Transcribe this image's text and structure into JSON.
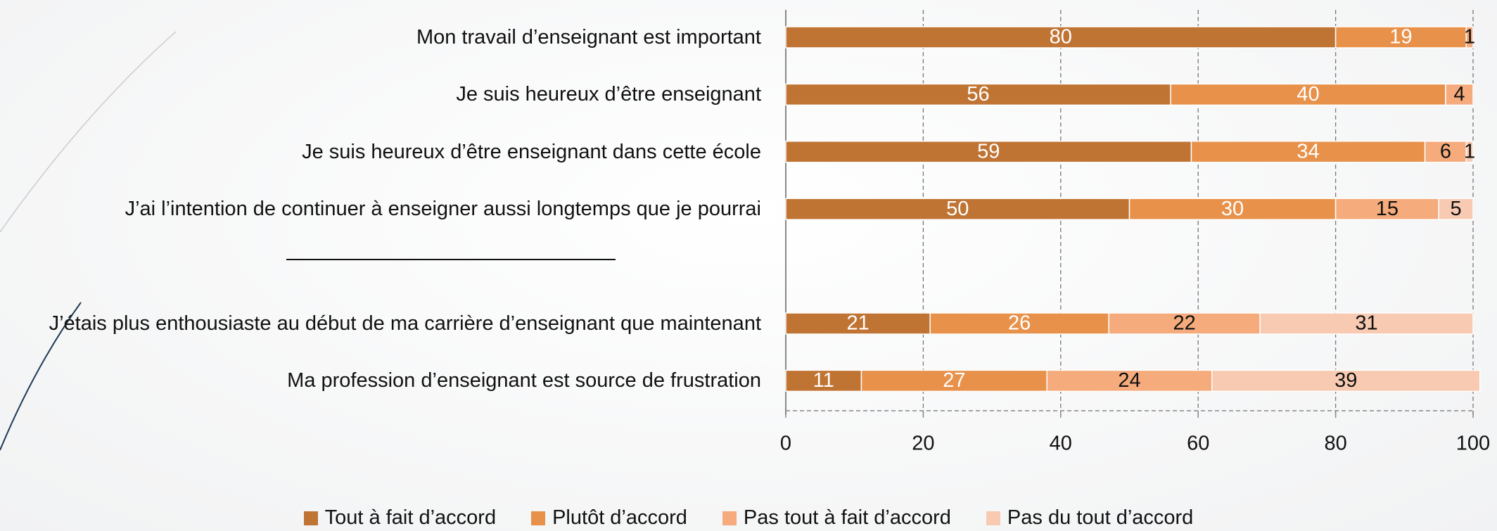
{
  "chart_data": {
    "type": "stacked_barh",
    "categories": [
      "Mon travail d’enseignant est important",
      "Je suis heureux d’être enseignant",
      "Je suis heureux d’être enseignant dans cette école",
      "J’ai l’intention de continuer à enseigner aussi longtemps que je pourrai",
      null,
      "J’étais plus enthousiaste au début de ma carrière d’enseignant que maintenant",
      "Ma profession d’enseignant est source de frustration"
    ],
    "series": [
      {
        "name": "Tout à fait d’accord",
        "color": "#c07434",
        "values": [
          80,
          56,
          59,
          50,
          null,
          21,
          11
        ]
      },
      {
        "name": "Plutôt d’accord",
        "color": "#e8914a",
        "values": [
          19,
          40,
          34,
          30,
          null,
          26,
          27
        ]
      },
      {
        "name": "Pas tout à fait d’accord",
        "color": "#f5ab7c",
        "values": [
          1,
          4,
          6,
          15,
          null,
          22,
          24
        ]
      },
      {
        "name": "Pas du tout d’accord",
        "color": "#f8cab2",
        "values": [
          null,
          null,
          1,
          5,
          null,
          31,
          39
        ]
      }
    ],
    "xlim": [
      0,
      100
    ],
    "xticks": [
      0,
      20,
      40,
      60,
      80,
      100
    ],
    "grid": true,
    "legend": "bottom"
  }
}
